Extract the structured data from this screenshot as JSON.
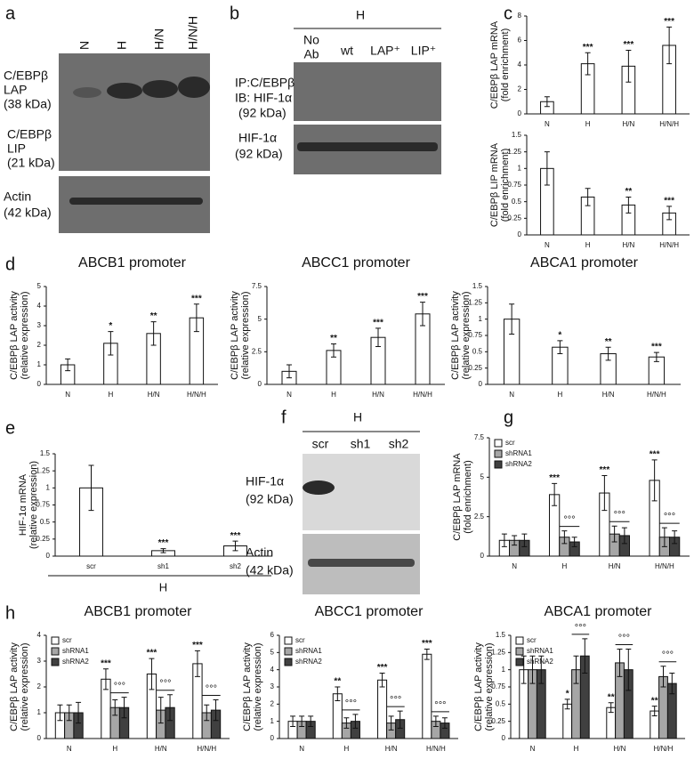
{
  "panel_letters": [
    "a",
    "b",
    "c",
    "d",
    "e",
    "f",
    "g",
    "h"
  ],
  "blots": {
    "a": {
      "lanes": [
        "N",
        "H",
        "H/N",
        "H/N/H"
      ],
      "labels": [
        "C/EBPβ",
        "LAP",
        "(38 kDa)",
        "C/EBPβ",
        "LIP",
        "(21 kDa)",
        "Actin",
        "(42 kDa)"
      ]
    },
    "b": {
      "header": "H",
      "lanes": [
        "No",
        "Ab",
        "wt",
        "LAP⁺",
        "LIP⁺"
      ],
      "labels": [
        "IP:C/EBPβ",
        "IB: HIF-1α",
        "(92 kDa)",
        "HIF-1α",
        "(92 kDa)"
      ]
    },
    "f": {
      "header": "H",
      "lanes": [
        "scr",
        "sh1",
        "sh2"
      ],
      "labels": [
        "HIF-1α",
        "(92 kDa)",
        "Actin",
        "(42 kDa)"
      ]
    }
  },
  "chart_data": [
    {
      "type": "bar",
      "ylabel": [
        "C/EBPβ LAP mRNA",
        "(fold enrichment)"
      ],
      "categories": [
        "N",
        "H",
        "H/N",
        "H/N/H"
      ],
      "values": [
        1,
        4.1,
        3.9,
        5.6
      ],
      "errors": [
        0.4,
        0.9,
        1.3,
        1.5
      ],
      "significance": [
        null,
        "***",
        "***",
        "***"
      ],
      "color": "#ffffff",
      "ylim": [
        0,
        8
      ],
      "yticks": [
        0,
        2,
        4,
        6,
        8
      ]
    },
    {
      "type": "bar",
      "ylabel": [
        "C/EBPβ LIP mRNA",
        "(fold enrichment)"
      ],
      "categories": [
        "N",
        "H",
        "H/N",
        "H/N/H"
      ],
      "values": [
        1,
        0.57,
        0.45,
        0.33
      ],
      "errors": [
        0.25,
        0.13,
        0.12,
        0.1
      ],
      "significance": [
        null,
        null,
        "**",
        "***"
      ],
      "color": "#ffffff",
      "ylim": [
        0,
        1.5
      ],
      "yticks": [
        0,
        0.25,
        0.5,
        0.75,
        1,
        1.25,
        1.5
      ]
    },
    {
      "type": "bar",
      "title": "ABCB1 promoter",
      "ylabel": [
        "C/EBPβ LAP activity",
        "(relative expression)"
      ],
      "categories": [
        "N",
        "H",
        "H/N",
        "H/N/H"
      ],
      "values": [
        1,
        2.1,
        2.6,
        3.4
      ],
      "errors": [
        0.3,
        0.6,
        0.6,
        0.7
      ],
      "significance": [
        null,
        "*",
        "**",
        "***"
      ],
      "color": "#ffffff",
      "ylim": [
        0,
        5
      ],
      "yticks": [
        0,
        1,
        2,
        3,
        4,
        5
      ]
    },
    {
      "type": "bar",
      "title": "ABCC1 promoter",
      "ylabel": [
        "C/EBPβ LAP activity",
        "(relative expression)"
      ],
      "categories": [
        "N",
        "H",
        "H/N",
        "H/N/H"
      ],
      "values": [
        1,
        2.6,
        3.6,
        5.4
      ],
      "errors": [
        0.5,
        0.5,
        0.7,
        0.9
      ],
      "significance": [
        null,
        "**",
        "***",
        "***"
      ],
      "color": "#ffffff",
      "ylim": [
        0,
        7.5
      ],
      "yticks": [
        0,
        2.5,
        5,
        7.5
      ]
    },
    {
      "type": "bar",
      "title": "ABCA1 promoter",
      "ylabel": [
        "C/EBPβ LAP activity",
        "(relative expression)"
      ],
      "categories": [
        "N",
        "H",
        "H/N",
        "H/N/H"
      ],
      "values": [
        1,
        0.57,
        0.47,
        0.42
      ],
      "errors": [
        0.23,
        0.1,
        0.1,
        0.07
      ],
      "significance": [
        null,
        "*",
        "**",
        "***"
      ],
      "color": "#ffffff",
      "ylim": [
        0,
        1.5
      ],
      "yticks": [
        0,
        0.25,
        0.5,
        0.75,
        1,
        1.25,
        1.5
      ]
    },
    {
      "type": "bar",
      "ylabel": [
        "HIF-1α mRNA",
        "(relative expression)"
      ],
      "categories": [
        "scr",
        "sh1",
        "sh2"
      ],
      "group_label": "H",
      "values": [
        1,
        0.08,
        0.15
      ],
      "errors": [
        0.33,
        0.03,
        0.07
      ],
      "significance": [
        null,
        "***",
        "***"
      ],
      "color": "#ffffff",
      "ylim": [
        0,
        1.5
      ],
      "yticks": [
        0,
        0.25,
        0.5,
        0.75,
        1,
        1.25,
        1.5
      ]
    },
    {
      "type": "grouped-bar",
      "ylabel": [
        "C/EBPβ LAP mRNA",
        "(fold enrichment)"
      ],
      "categories": [
        "N",
        "H",
        "H/N",
        "H/N/H"
      ],
      "series": [
        {
          "name": "scr",
          "color": "#ffffff",
          "values": [
            1,
            3.9,
            4.0,
            4.8
          ],
          "errors": [
            0.4,
            0.7,
            1.1,
            1.3
          ],
          "significance": [
            null,
            "***",
            "***",
            "***"
          ]
        },
        {
          "name": "shRNA1",
          "color": "#a6a6a6",
          "values": [
            1,
            1.2,
            1.4,
            1.2
          ],
          "errors": [
            0.3,
            0.4,
            0.5,
            0.6
          ]
        },
        {
          "name": "shRNA2",
          "color": "#404040",
          "values": [
            1,
            0.9,
            1.3,
            1.2
          ],
          "errors": [
            0.4,
            0.3,
            0.5,
            0.4
          ]
        }
      ],
      "group_annotations": [
        null,
        "°°°",
        "°°°",
        "°°°"
      ],
      "ylim": [
        0,
        7.5
      ],
      "yticks": [
        0,
        2.5,
        5,
        7.5
      ]
    },
    {
      "type": "grouped-bar",
      "title": "ABCB1 promoter",
      "ylabel": [
        "C/EBPβ LAP activity",
        "(relative expression)"
      ],
      "categories": [
        "N",
        "H",
        "H/N",
        "H/N/H"
      ],
      "series": [
        {
          "name": "scr",
          "color": "#ffffff",
          "values": [
            1,
            2.3,
            2.5,
            2.9
          ],
          "errors": [
            0.3,
            0.4,
            0.6,
            0.5
          ],
          "significance": [
            null,
            "***",
            "***",
            "***"
          ]
        },
        {
          "name": "shRNA1",
          "color": "#a6a6a6",
          "values": [
            1,
            1.2,
            1.1,
            1
          ],
          "errors": [
            0.3,
            0.3,
            0.5,
            0.3
          ]
        },
        {
          "name": "shRNA2",
          "color": "#404040",
          "values": [
            1,
            1.2,
            1.2,
            1.1
          ],
          "errors": [
            0.4,
            0.4,
            0.5,
            0.4
          ]
        }
      ],
      "group_annotations": [
        null,
        "°°°",
        "°°°",
        "°°°"
      ],
      "ylim": [
        0,
        4
      ],
      "yticks": [
        0,
        1,
        2,
        3,
        4
      ]
    },
    {
      "type": "grouped-bar",
      "title": "ABCC1 promoter",
      "ylabel": [
        "C/EBPβ LAP activity",
        "(relative expression)"
      ],
      "categories": [
        "N",
        "H",
        "H/N",
        "H/N/H"
      ],
      "series": [
        {
          "name": "scr",
          "color": "#ffffff",
          "values": [
            1,
            2.6,
            3.4,
            4.9
          ],
          "errors": [
            0.3,
            0.4,
            0.4,
            0.3
          ],
          "significance": [
            null,
            "**",
            "***",
            "***"
          ]
        },
        {
          "name": "shRNA1",
          "color": "#a6a6a6",
          "values": [
            1,
            0.9,
            0.9,
            1
          ],
          "errors": [
            0.3,
            0.3,
            0.4,
            0.3
          ]
        },
        {
          "name": "shRNA2",
          "color": "#404040",
          "values": [
            1,
            1,
            1.1,
            0.9
          ],
          "errors": [
            0.3,
            0.4,
            0.5,
            0.3
          ]
        }
      ],
      "group_annotations": [
        null,
        "°°°",
        "°°°",
        "°°°"
      ],
      "ylim": [
        0,
        6
      ],
      "yticks": [
        0,
        1,
        2,
        3,
        4,
        5,
        6
      ]
    },
    {
      "type": "grouped-bar",
      "title": "ABCA1 promoter",
      "ylabel": [
        "C/EBPβ LAP activity",
        "(relative expression)"
      ],
      "categories": [
        "N",
        "H",
        "H/N",
        "H/N/H"
      ],
      "series": [
        {
          "name": "scr",
          "color": "#ffffff",
          "values": [
            1,
            0.5,
            0.45,
            0.4
          ],
          "errors": [
            0.2,
            0.07,
            0.07,
            0.07
          ],
          "significance": [
            null,
            "*",
            "**",
            "**"
          ]
        },
        {
          "name": "shRNA1",
          "color": "#a6a6a6",
          "values": [
            1,
            1,
            1.1,
            0.9
          ],
          "errors": [
            0.2,
            0.2,
            0.2,
            0.15
          ]
        },
        {
          "name": "shRNA2",
          "color": "#404040",
          "values": [
            1,
            1.2,
            1,
            0.8
          ],
          "errors": [
            0.2,
            0.25,
            0.3,
            0.15
          ]
        }
      ],
      "group_annotations": [
        null,
        "°°°",
        "°°°",
        "°°°"
      ],
      "ylim": [
        0,
        1.5
      ],
      "yticks": [
        0,
        0.25,
        0.5,
        0.75,
        1,
        1.25,
        1.5
      ]
    }
  ]
}
